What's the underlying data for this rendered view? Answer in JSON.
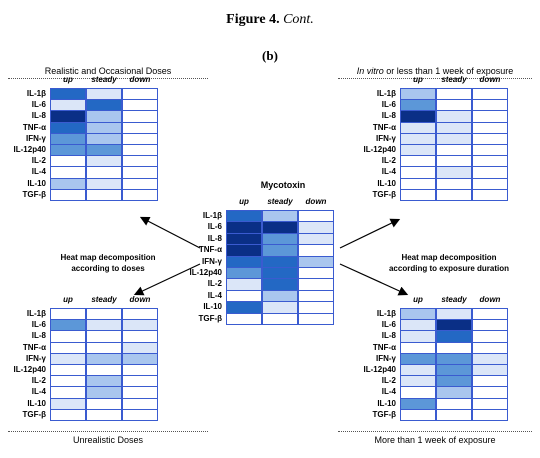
{
  "figure": {
    "label": "Figure 4.",
    "cont": "Cont."
  },
  "subfigure_label": "(b)",
  "columns": [
    "up",
    "steady",
    "down"
  ],
  "rows": [
    "IL-1β",
    "IL-6",
    "IL-8",
    "TNF-α",
    "IFN-γ",
    "IL-12p40",
    "IL-2",
    "IL-4",
    "IL-10",
    "TGF-β"
  ],
  "panels": {
    "top_left": {
      "caption": "Realistic and Occasional Doses",
      "levels": [
        [
          4,
          1,
          0
        ],
        [
          1,
          4,
          0
        ],
        [
          5,
          2,
          0
        ],
        [
          4,
          2,
          0
        ],
        [
          3,
          2,
          0
        ],
        [
          3,
          3,
          0
        ],
        [
          0,
          1,
          0
        ],
        [
          0,
          0,
          0
        ],
        [
          2,
          1,
          0
        ],
        [
          0,
          0,
          0
        ]
      ]
    },
    "top_right": {
      "caption_italic": "In vitro",
      "caption_rest": " or less than 1 week of exposure",
      "levels": [
        [
          2,
          0,
          0
        ],
        [
          3,
          0,
          0
        ],
        [
          5,
          1,
          0
        ],
        [
          1,
          1,
          0
        ],
        [
          1,
          1,
          0
        ],
        [
          1,
          0,
          0
        ],
        [
          0,
          0,
          0
        ],
        [
          0,
          1,
          0
        ],
        [
          0,
          0,
          0
        ],
        [
          0,
          0,
          0
        ]
      ]
    },
    "center": {
      "title": "Mycotoxin",
      "levels": [
        [
          4,
          2,
          0
        ],
        [
          5,
          5,
          1
        ],
        [
          5,
          3,
          1
        ],
        [
          5,
          3,
          0
        ],
        [
          4,
          4,
          2
        ],
        [
          3,
          4,
          0
        ],
        [
          1,
          4,
          0
        ],
        [
          0,
          2,
          0
        ],
        [
          4,
          1,
          0
        ],
        [
          0,
          0,
          0
        ]
      ]
    },
    "bottom_left": {
      "caption": "Unrealistic Doses",
      "levels": [
        [
          0,
          0,
          0
        ],
        [
          3,
          1,
          1
        ],
        [
          0,
          0,
          0
        ],
        [
          0,
          0,
          1
        ],
        [
          1,
          2,
          2
        ],
        [
          0,
          0,
          0
        ],
        [
          0,
          2,
          0
        ],
        [
          0,
          2,
          0
        ],
        [
          1,
          0,
          0
        ],
        [
          0,
          0,
          0
        ]
      ]
    },
    "bottom_right": {
      "caption": "More than 1 week of exposure",
      "levels": [
        [
          2,
          1,
          0
        ],
        [
          1,
          5,
          0
        ],
        [
          1,
          4,
          0
        ],
        [
          0,
          0,
          0
        ],
        [
          3,
          3,
          1
        ],
        [
          1,
          3,
          1
        ],
        [
          1,
          3,
          0
        ],
        [
          0,
          2,
          0
        ],
        [
          3,
          0,
          0
        ],
        [
          0,
          0,
          0
        ]
      ]
    }
  },
  "side_labels": {
    "left": [
      "Heat map decomposition",
      "according to doses"
    ],
    "right": [
      "Heat map decomposition",
      "according to exposure duration"
    ]
  },
  "palette": [
    "#ffffff",
    "#dbe6f8",
    "#a9c6ee",
    "#5c97d8",
    "#2368c4",
    "#0a2f86"
  ]
}
